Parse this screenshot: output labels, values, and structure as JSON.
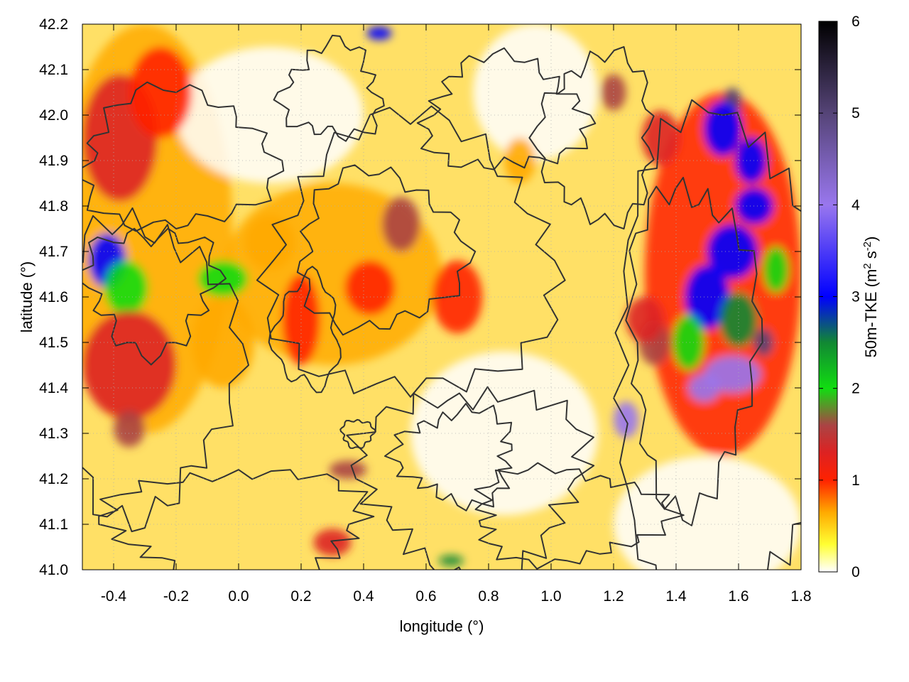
{
  "chart_data": {
    "type": "heatmap",
    "title": "",
    "xlabel": "longitude (°)",
    "ylabel": "latitude (°)",
    "xlim": [
      -0.5,
      1.8
    ],
    "ylim": [
      41.0,
      42.2
    ],
    "x_ticks": [
      "-0.4",
      "-0.2",
      "0.0",
      "0.2",
      "0.4",
      "0.6",
      "0.8",
      "1.0",
      "1.2",
      "1.4",
      "1.6",
      "1.8"
    ],
    "x_tick_values": [
      -0.4,
      -0.2,
      0.0,
      0.2,
      0.4,
      0.6,
      0.8,
      1.0,
      1.2,
      1.4,
      1.6,
      1.8
    ],
    "y_ticks": [
      "41.0",
      "41.1",
      "41.2",
      "41.3",
      "41.4",
      "41.5",
      "41.6",
      "41.7",
      "41.8",
      "41.9",
      "42.0",
      "42.1",
      "42.2"
    ],
    "y_tick_values": [
      41.0,
      41.1,
      41.2,
      41.3,
      41.4,
      41.5,
      41.6,
      41.7,
      41.8,
      41.9,
      42.0,
      42.1,
      42.2
    ],
    "colorbar": {
      "label_main": "50m-TKE (m",
      "label_sup1": "2",
      "label_mid": " s",
      "label_sup2": "-2",
      "label_end": ")",
      "range": [
        0,
        6
      ],
      "ticks": [
        "0",
        "1",
        "2",
        "3",
        "4",
        "5",
        "6"
      ],
      "tick_values": [
        0,
        1,
        2,
        3,
        4,
        5,
        6
      ],
      "stops": [
        {
          "value": 0.0,
          "color": "#ffffff"
        },
        {
          "value": 0.3,
          "color": "#ffff33"
        },
        {
          "value": 0.65,
          "color": "#ffaa00"
        },
        {
          "value": 1.0,
          "color": "#ff2200"
        },
        {
          "value": 1.3,
          "color": "#dd2222"
        },
        {
          "value": 1.6,
          "color": "#aa4444"
        },
        {
          "value": 2.0,
          "color": "#11dd11"
        },
        {
          "value": 2.5,
          "color": "#118833"
        },
        {
          "value": 3.0,
          "color": "#0000ff"
        },
        {
          "value": 4.0,
          "color": "#9977ee"
        },
        {
          "value": 5.0,
          "color": "#554477"
        },
        {
          "value": 6.0,
          "color": "#000000"
        }
      ]
    },
    "grid": true,
    "contours": true,
    "hotspots": [
      {
        "lon": -0.38,
        "lat": 41.95,
        "tke": 1.3,
        "rx": 0.12,
        "ry": 0.14
      },
      {
        "lon": -0.25,
        "lat": 42.05,
        "tke": 1.1,
        "rx": 0.1,
        "ry": 0.1
      },
      {
        "lon": -0.42,
        "lat": 41.68,
        "tke": 3.4,
        "rx": 0.06,
        "ry": 0.06
      },
      {
        "lon": -0.36,
        "lat": 41.62,
        "tke": 2.3,
        "rx": 0.07,
        "ry": 0.06
      },
      {
        "lon": -0.05,
        "lat": 41.64,
        "tke": 2.0,
        "rx": 0.08,
        "ry": 0.04
      },
      {
        "lon": -0.35,
        "lat": 41.45,
        "tke": 1.5,
        "rx": 0.15,
        "ry": 0.12
      },
      {
        "lon": -0.35,
        "lat": 41.31,
        "tke": 1.6,
        "rx": 0.05,
        "ry": 0.04
      },
      {
        "lon": 0.52,
        "lat": 41.76,
        "tke": 1.6,
        "rx": 0.06,
        "ry": 0.06
      },
      {
        "lon": 0.42,
        "lat": 41.62,
        "tke": 1.1,
        "rx": 0.08,
        "ry": 0.06
      },
      {
        "lon": 0.35,
        "lat": 41.22,
        "tke": 1.8,
        "rx": 0.06,
        "ry": 0.02
      },
      {
        "lon": 0.45,
        "lat": 42.18,
        "tke": 3.2,
        "rx": 0.04,
        "ry": 0.015
      },
      {
        "lon": 1.2,
        "lat": 42.05,
        "tke": 1.8,
        "rx": 0.04,
        "ry": 0.04
      },
      {
        "lon": 1.35,
        "lat": 41.95,
        "tke": 1.3,
        "rx": 0.06,
        "ry": 0.06
      },
      {
        "lon": 1.58,
        "lat": 42.03,
        "tke": 5.8,
        "rx": 0.03,
        "ry": 0.03
      },
      {
        "lon": 1.55,
        "lat": 41.97,
        "tke": 3.8,
        "rx": 0.06,
        "ry": 0.06
      },
      {
        "lon": 1.64,
        "lat": 41.9,
        "tke": 3.0,
        "rx": 0.05,
        "ry": 0.05
      },
      {
        "lon": 1.65,
        "lat": 41.8,
        "tke": 3.0,
        "rx": 0.06,
        "ry": 0.04
      },
      {
        "lon": 1.58,
        "lat": 41.7,
        "tke": 3.6,
        "rx": 0.08,
        "ry": 0.06
      },
      {
        "lon": 1.5,
        "lat": 41.6,
        "tke": 3.9,
        "rx": 0.07,
        "ry": 0.07
      },
      {
        "lon": 1.6,
        "lat": 41.55,
        "tke": 2.6,
        "rx": 0.06,
        "ry": 0.06
      },
      {
        "lon": 1.68,
        "lat": 41.5,
        "tke": 5.6,
        "rx": 0.03,
        "ry": 0.03
      },
      {
        "lon": 1.58,
        "lat": 41.43,
        "tke": 4.1,
        "rx": 0.09,
        "ry": 0.04
      },
      {
        "lon": 1.49,
        "lat": 41.4,
        "tke": 4.3,
        "rx": 0.05,
        "ry": 0.03
      },
      {
        "lon": 1.44,
        "lat": 41.5,
        "tke": 2.4,
        "rx": 0.05,
        "ry": 0.06
      },
      {
        "lon": 1.24,
        "lat": 41.33,
        "tke": 4.1,
        "rx": 0.04,
        "ry": 0.04
      },
      {
        "lon": 1.33,
        "lat": 41.5,
        "tke": 1.6,
        "rx": 0.05,
        "ry": 0.05
      },
      {
        "lon": 1.3,
        "lat": 41.55,
        "tke": 1.4,
        "rx": 0.06,
        "ry": 0.05
      },
      {
        "lon": 1.72,
        "lat": 41.66,
        "tke": 2.4,
        "rx": 0.04,
        "ry": 0.05
      },
      {
        "lon": 0.9,
        "lat": 41.9,
        "tke": 0.9,
        "rx": 0.05,
        "ry": 0.05
      },
      {
        "lon": 0.7,
        "lat": 41.6,
        "tke": 1.0,
        "rx": 0.08,
        "ry": 0.08
      },
      {
        "lon": 0.2,
        "lat": 41.55,
        "tke": 1.0,
        "rx": 0.06,
        "ry": 0.1
      },
      {
        "lon": -0.05,
        "lat": 41.5,
        "tke": 0.9,
        "rx": 0.1,
        "ry": 0.1
      },
      {
        "lon": 0.68,
        "lat": 41.02,
        "tke": 2.8,
        "rx": 0.04,
        "ry": 0.012
      },
      {
        "lon": 0.3,
        "lat": 41.06,
        "tke": 1.3,
        "rx": 0.06,
        "ry": 0.03
      },
      {
        "lon": 0.1,
        "lat": 41.72,
        "tke": 0.8,
        "rx": 0.08,
        "ry": 0.06
      }
    ]
  }
}
